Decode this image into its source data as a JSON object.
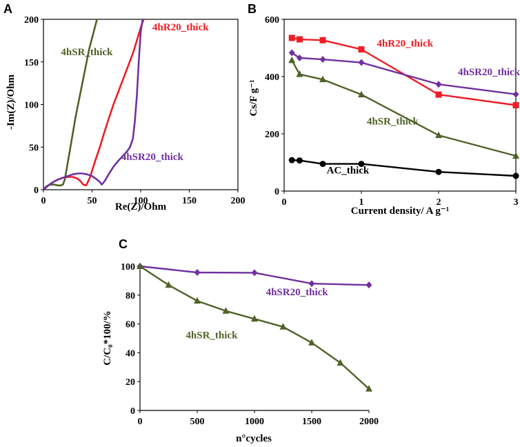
{
  "colors": {
    "red": "#ee1c24",
    "purple": "#7030a0",
    "green": "#4f6228",
    "black": "#000000"
  },
  "chart_data": [
    {
      "panel": "A",
      "type": "line",
      "title": "",
      "xlabel": "Re(Z)/Ohm",
      "ylabel": "-Im(Z)/Ohm",
      "xlim": [
        0,
        200
      ],
      "ylim": [
        0,
        200
      ],
      "xticks": [
        0,
        50,
        100,
        150,
        200
      ],
      "yticks": [
        0,
        50,
        100,
        150,
        200
      ],
      "series": [
        {
          "name": "4hSR_thick",
          "label": "4hSR_thick",
          "color_key": "green",
          "x": [
            0,
            3,
            7,
            11,
            15,
            18,
            20,
            22,
            27,
            33,
            40,
            47,
            55
          ],
          "y": [
            0,
            4,
            6,
            6,
            5,
            5,
            6,
            12,
            45,
            85,
            125,
            165,
            200
          ]
        },
        {
          "name": "4hR20_thick",
          "label": "4hR20_thick",
          "color_key": "red",
          "x": [
            0,
            5,
            10,
            15,
            20,
            25,
            30,
            35,
            38,
            41,
            44,
            48,
            53,
            58,
            62,
            67,
            72,
            77,
            82,
            87,
            92,
            96,
            100,
            103
          ],
          "y": [
            0,
            5,
            9,
            12,
            14,
            15,
            15,
            13,
            10,
            6,
            5,
            15,
            33,
            50,
            65,
            83,
            100,
            115,
            130,
            145,
            160,
            175,
            190,
            200
          ]
        },
        {
          "name": "4hSR20_thick",
          "label": "4hSR20_thick",
          "color_key": "purple",
          "x": [
            0,
            5,
            10,
            15,
            20,
            25,
            30,
            35,
            40,
            45,
            50,
            55,
            58,
            60,
            63,
            67,
            72,
            77,
            82,
            86,
            89,
            92,
            94,
            96,
            98,
            100,
            102
          ],
          "y": [
            0,
            5,
            9,
            12,
            14,
            16,
            18,
            19,
            19,
            18,
            16,
            12,
            9,
            6,
            10,
            18,
            27,
            34,
            40,
            45,
            50,
            60,
            80,
            110,
            150,
            185,
            200
          ]
        }
      ],
      "annotations": [
        {
          "text": "4hSR_thick",
          "color_key": "green",
          "x": 18,
          "y": 158
        },
        {
          "text": "4hR20_thick",
          "color_key": "red",
          "x": 112,
          "y": 187
        },
        {
          "text": "4hSR20_thick",
          "color_key": "purple",
          "x": 80,
          "y": 35
        }
      ]
    },
    {
      "panel": "B",
      "type": "line",
      "title": "",
      "xlabel": "Current density/ A g⁻¹",
      "ylabel": "Cs/F g⁻¹",
      "xlim": [
        0,
        3
      ],
      "ylim": [
        0,
        600
      ],
      "xticks": [
        0,
        1,
        2,
        3
      ],
      "yticks": [
        0,
        200,
        400,
        600
      ],
      "series": [
        {
          "name": "4hR20_thick",
          "label": "4hR20_thick",
          "color_key": "red",
          "marker": "square",
          "x": [
            0.1,
            0.2,
            0.5,
            1,
            2,
            3
          ],
          "y": [
            535,
            530,
            527,
            495,
            337,
            300
          ]
        },
        {
          "name": "4hSR20_thick",
          "label": "4hSR20_thick",
          "color_key": "purple",
          "marker": "diamond",
          "x": [
            0.1,
            0.2,
            0.5,
            1,
            2,
            3
          ],
          "y": [
            483,
            465,
            460,
            449,
            373,
            338
          ]
        },
        {
          "name": "4hSR_thick",
          "label": "4hSR_thick",
          "color_key": "green",
          "marker": "triangle",
          "x": [
            0.1,
            0.2,
            0.5,
            1,
            2,
            3
          ],
          "y": [
            457,
            408,
            390,
            337,
            195,
            123
          ]
        },
        {
          "name": "AC_thick",
          "label": "AC_thick",
          "color_key": "black",
          "marker": "circle",
          "x": [
            0.1,
            0.2,
            0.5,
            1,
            2,
            3
          ],
          "y": [
            108,
            107,
            95,
            95,
            67,
            53
          ]
        }
      ],
      "annotations": [
        {
          "text": "4hR20_thick",
          "color_key": "red",
          "x": 1.2,
          "y": 505
        },
        {
          "text": "4hSR20_thick",
          "color_key": "purple",
          "x": 2.25,
          "y": 405
        },
        {
          "text": "4hSR_thick",
          "color_key": "green",
          "x": 1.07,
          "y": 232
        },
        {
          "text": "AC_thick",
          "color_key": "black",
          "x": 0.55,
          "y": 62
        }
      ]
    },
    {
      "panel": "C",
      "type": "line",
      "title": "",
      "xlabel": "n°cycles",
      "ylabel": "C/C₀*100/%",
      "xlim": [
        0,
        2000
      ],
      "ylim": [
        0,
        100
      ],
      "xticks": [
        0,
        500,
        1000,
        1500,
        2000
      ],
      "yticks": [
        0,
        20,
        40,
        60,
        80,
        100
      ],
      "series": [
        {
          "name": "4hSR20_thick",
          "label": "4hSR20_thick",
          "color_key": "purple",
          "marker": "diamond",
          "x": [
            0,
            500,
            1000,
            1500,
            2000
          ],
          "y": [
            100,
            95.7,
            95.5,
            88,
            87
          ]
        },
        {
          "name": "4hSR_thick",
          "label": "4hSR_thick",
          "color_key": "green",
          "marker": "triangle",
          "x": [
            0,
            250,
            500,
            750,
            1000,
            1250,
            1500,
            1750,
            2000
          ],
          "y": [
            100,
            87,
            76,
            69,
            63.5,
            58,
            47,
            33,
            15
          ]
        }
      ],
      "annotations": [
        {
          "text": "4hSR20_thick",
          "color_key": "purple",
          "x": 1100,
          "y": 80
        },
        {
          "text": "4hSR_thick",
          "color_key": "green",
          "x": 400,
          "y": 50
        }
      ]
    }
  ]
}
